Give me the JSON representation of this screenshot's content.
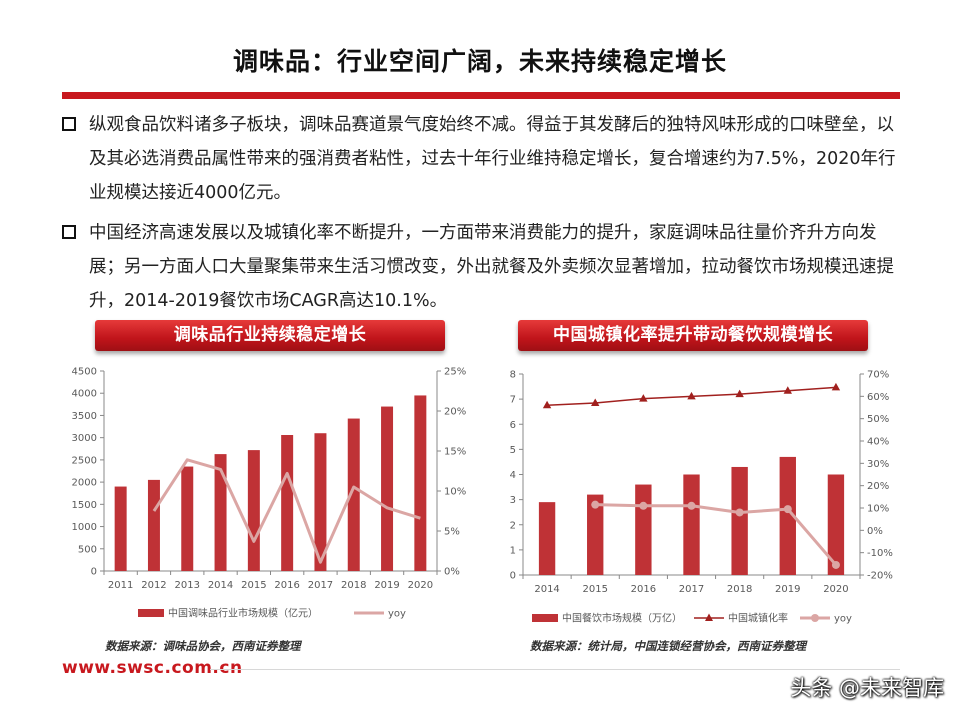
{
  "title": "调味品：行业空间广阔，未来持续稳定增长",
  "bullets": [
    "纵观食品饮料诸多子板块，调味品赛道景气度始终不减。得益于其发酵后的独特风味形成的口味壁垒，以及其必选消费品属性带来的强消费者粘性，过去十年行业维持稳定增长，复合增速约为7.5%，2020年行业规模达接近4000亿元。",
    "中国经济高速发展以及城镇化率不断提升，一方面带来消费能力的提升，家庭调味品往量价齐升方向发展；另一方面人口大量聚集带来生活习惯改变，外出就餐及外卖频次显著增加，拉动餐饮市场规模迅速提升，2014-2019餐饮市场CAGR高达10.1%。"
  ],
  "colors": {
    "bar": "#bf3236",
    "yoy_line": "#dba6a4",
    "urban_line": "#a1201e",
    "brand_red": "#c8181e",
    "axis_text": "#595959"
  },
  "chart_data": [
    {
      "type": "bar",
      "banner": "调味品行业持续稳定增长",
      "categories": [
        "2011",
        "2012",
        "2013",
        "2014",
        "2015",
        "2016",
        "2017",
        "2018",
        "2019",
        "2020"
      ],
      "series": [
        {
          "name": "中国调味品行业市场规模（亿元）",
          "axis": "left",
          "kind": "bar",
          "values": [
            1900,
            2050,
            2350,
            2630,
            2720,
            3060,
            3100,
            3430,
            3700,
            3950
          ]
        },
        {
          "name": "yoy",
          "axis": "right",
          "kind": "line",
          "values": [
            null,
            7.5,
            13.9,
            12.7,
            3.7,
            12.2,
            1.1,
            10.5,
            7.9,
            6.6
          ]
        }
      ],
      "ylim_left": [
        0,
        4500
      ],
      "yticks_left": [
        "0",
        "500",
        "1000",
        "1500",
        "2000",
        "2500",
        "3000",
        "3500",
        "4000",
        "4500"
      ],
      "ylim_right": [
        0,
        25
      ],
      "yticks_right": [
        "0%",
        "5%",
        "10%",
        "15%",
        "20%",
        "25%"
      ],
      "source": "数据来源：调味品协会，西南证券整理",
      "legend_position": "bottom"
    },
    {
      "type": "bar",
      "banner": "中国城镇化率提升带动餐饮规模增长",
      "categories": [
        "2014",
        "2015",
        "2016",
        "2017",
        "2018",
        "2019",
        "2020"
      ],
      "series": [
        {
          "name": "中国餐饮市场规模（万亿）",
          "axis": "left",
          "kind": "bar",
          "values": [
            2.9,
            3.2,
            3.6,
            4.0,
            4.3,
            4.7,
            4.0
          ]
        },
        {
          "name": "中国城镇化率",
          "axis": "right",
          "kind": "line-triangle",
          "values": [
            56,
            57,
            59,
            60,
            61,
            62.5,
            64
          ]
        },
        {
          "name": "yoy",
          "axis": "right",
          "kind": "line-circle",
          "values": [
            null,
            11.5,
            11,
            11,
            8,
            9.5,
            -15.5
          ]
        }
      ],
      "ylim_left": [
        0,
        8
      ],
      "yticks_left": [
        "0",
        "1",
        "2",
        "3",
        "4",
        "5",
        "6",
        "7",
        "8"
      ],
      "ylim_right": [
        -20,
        70
      ],
      "yticks_right": [
        "-20%",
        "-10%",
        "0%",
        "10%",
        "20%",
        "30%",
        "40%",
        "50%",
        "60%",
        "70%"
      ],
      "source": "数据来源：统计局，中国连锁经营协会，西南证券整理",
      "legend_position": "bottom"
    }
  ],
  "footer": {
    "site": "www.swsc.com.cn",
    "watermark": "头条 @未来智库"
  }
}
